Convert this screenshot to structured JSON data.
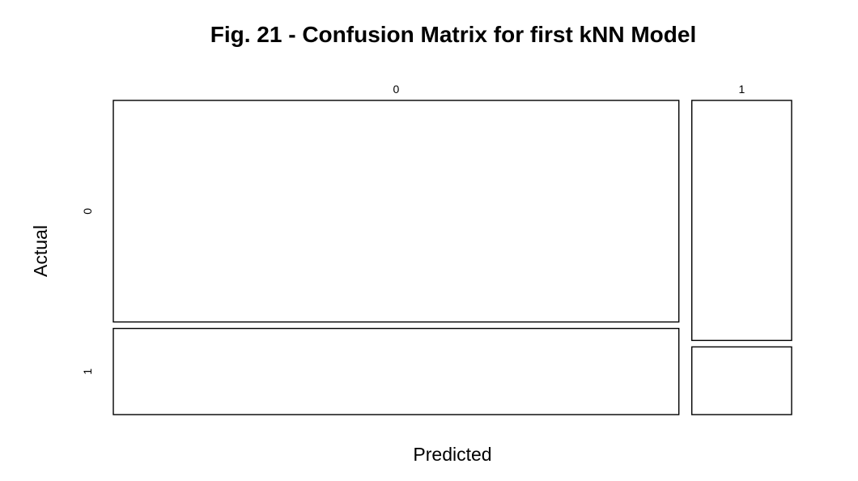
{
  "chart_data": {
    "type": "mosaic",
    "title": "Fig. 21 - Confusion Matrix for first kNN Model",
    "xlabel": "Predicted",
    "ylabel": "Actual",
    "x_categories": [
      "0",
      "1"
    ],
    "y_categories": [
      "0",
      "1"
    ],
    "predicted_share": [
      0.85,
      0.15
    ],
    "actual_share_within_predicted": {
      "0": [
        0.72,
        0.28
      ],
      "1": [
        0.78,
        0.22
      ]
    },
    "colors": {
      "fill": "#ffffff",
      "stroke": "#000000"
    },
    "grid": false,
    "legend": "none"
  }
}
